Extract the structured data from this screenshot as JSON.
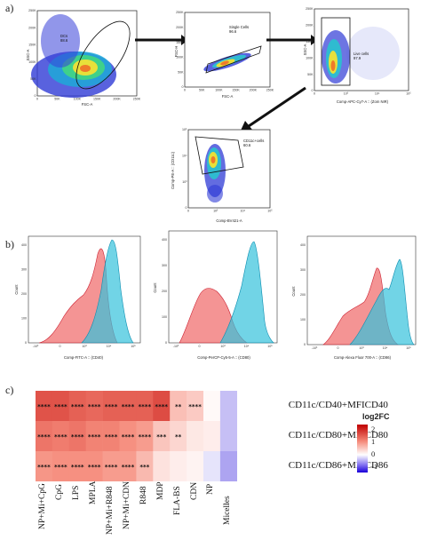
{
  "panels": {
    "a": "a)",
    "b": "b)",
    "c": "c)"
  },
  "flow": {
    "dcs": {
      "gate_name": "DCs",
      "gate_pct": "88.6",
      "xlabel": "FSC-A",
      "ylabel": "SSC-A",
      "xticks": [
        "0",
        "50K",
        "100K",
        "150K",
        "200K",
        "250K"
      ],
      "yticks": [
        "0",
        "50K",
        "100K",
        "150K",
        "200K",
        "250K"
      ]
    },
    "single": {
      "gate_name": "Single Cells",
      "gate_pct": "96.6",
      "xlabel": "FSC-A",
      "ylabel": "FSC-H",
      "xticks": [
        "0",
        "50K",
        "100K",
        "150K",
        "200K",
        "250K"
      ],
      "yticks": [
        "0",
        "50K",
        "100K",
        "150K",
        "200K",
        "250K"
      ]
    },
    "live": {
      "gate_name": "Live cells",
      "gate_pct": "97.9",
      "xlabel": "Comp-APC-Cy7-A :: (Zom NIR)",
      "ylabel": "SSC-A",
      "xticks": [
        "0",
        "10³",
        "10⁴",
        "10⁵"
      ],
      "yticks": [
        "0",
        "50K",
        "100K",
        "150K",
        "200K",
        "250K"
      ]
    },
    "cd11c": {
      "gate_name": "CD11c+cells",
      "gate_pct": "60.6",
      "xlabel": "Comp-BV421-A",
      "ylabel": "Comp-PE-A :: (CD11c)",
      "xticks": [
        "0",
        "10³",
        "10⁴",
        "10⁵"
      ],
      "yticks": [
        "0",
        "10³",
        "10⁴",
        "10⁵"
      ]
    }
  },
  "histograms": [
    {
      "ylabel": "Count",
      "xlabel": "Comp-FITC-A :: (CD40)",
      "yticks": [
        "0",
        "100",
        "200",
        "300",
        "400"
      ],
      "xticks": [
        "-10³",
        "0",
        "10³",
        "10⁴",
        "10⁵"
      ]
    },
    {
      "ylabel": "Count",
      "xlabel": "Comp-PerCP-Cy5-5-A :: (CD80)",
      "yticks": [
        "0",
        "100",
        "200",
        "300",
        "400"
      ],
      "xticks": [
        "-10³",
        "0",
        "10³",
        "10⁴",
        "10⁵"
      ]
    },
    {
      "ylabel": "Count",
      "xlabel": "Comp-Alexa Fluor 700-A :: (CD86)",
      "yticks": [
        "0",
        "100",
        "200",
        "300",
        "400"
      ],
      "xticks": [
        "-10³",
        "0",
        "10³",
        "10⁴",
        "10⁵"
      ]
    }
  ],
  "chart_data": {
    "type": "heatmap",
    "rows": [
      "CD11c/CD40+MFICD40",
      "CD11c/CD80+MFICD80",
      "CD11c/CD86+MFICD86"
    ],
    "columns": [
      "NP+Mi+CpG",
      "CpG",
      "LPS",
      "MPLA",
      "NP+Mi+R848",
      "NP+Mi+CDN",
      "R848",
      "MDP",
      "FLA-BS",
      "CDN",
      "NP",
      "Micelles"
    ],
    "values": [
      [
        1.4,
        1.4,
        1.3,
        1.25,
        1.3,
        1.3,
        1.3,
        1.45,
        0.55,
        0.45,
        0.05,
        -0.35
      ],
      [
        1.15,
        1.1,
        1.15,
        1.05,
        1.05,
        0.95,
        0.85,
        0.5,
        0.35,
        0.2,
        0.15,
        -0.35
      ],
      [
        0.9,
        0.95,
        0.95,
        0.95,
        0.85,
        0.85,
        0.6,
        0.25,
        0.15,
        0.1,
        -0.15,
        -0.5
      ]
    ],
    "significance": [
      [
        "****",
        "****",
        "****",
        "****",
        "****",
        "****",
        "****",
        "****",
        "**",
        "****",
        "",
        ""
      ],
      [
        "****",
        "****",
        "****",
        "****",
        "****",
        "****",
        "****",
        "***",
        "**",
        "",
        "",
        ""
      ],
      [
        "****",
        "****",
        "****",
        "****",
        "****",
        "****",
        "***",
        "",
        "",
        "",
        "",
        ""
      ]
    ],
    "colorbar": {
      "title": "log2FC",
      "ticks": [
        "2",
        "1",
        "0",
        "-1"
      ],
      "min": -1.4,
      "max": 2.4
    }
  }
}
